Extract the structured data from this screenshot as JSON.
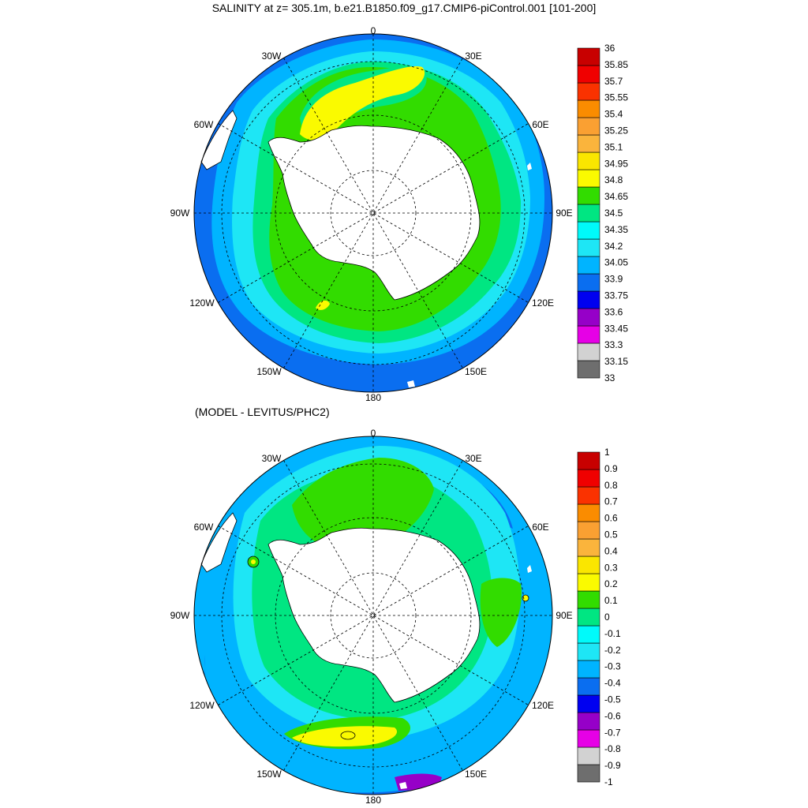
{
  "title": "SALINITY at z= 305.1m, b.e21.B1850.f09_g17.CMIP6-piControl.001 [101-200]",
  "subtitle": "(MODEL - LEVITUS/PHC2)",
  "lon_labels": [
    "0",
    "30E",
    "60E",
    "90E",
    "120E",
    "150E",
    "180",
    "150W",
    "120W",
    "90W",
    "60W",
    "30W"
  ],
  "colors": [
    "#6e6e6e",
    "#d2d2d2",
    "#e600e6",
    "#9600c8",
    "#0000f0",
    "#0a6ef0",
    "#00b4ff",
    "#1ee6f5",
    "#00fafa",
    "#00e682",
    "#32dc00",
    "#fafa00",
    "#fae600",
    "#fab43c",
    "#faa032",
    "#fa8c00",
    "#fa3200",
    "#f00000",
    "#c80000"
  ],
  "maps": [
    {
      "name": "salinity",
      "colorbar_labels": [
        "36",
        "35.85",
        "35.7",
        "35.55",
        "35.4",
        "35.25",
        "35.1",
        "34.95",
        "34.8",
        "34.65",
        "34.5",
        "34.35",
        "34.2",
        "34.05",
        "33.9",
        "33.75",
        "33.6",
        "33.45",
        "33.3",
        "33.15",
        "33"
      ]
    },
    {
      "name": "difference",
      "colorbar_labels": [
        "1",
        "0.9",
        "0.8",
        "0.7",
        "0.6",
        "0.5",
        "0.4",
        "0.3",
        "0.2",
        "0.1",
        "0",
        "-0.1",
        "-0.2",
        "-0.3",
        "-0.4",
        "-0.5",
        "-0.6",
        "-0.7",
        "-0.8",
        "-0.9",
        "-1"
      ]
    }
  ]
}
